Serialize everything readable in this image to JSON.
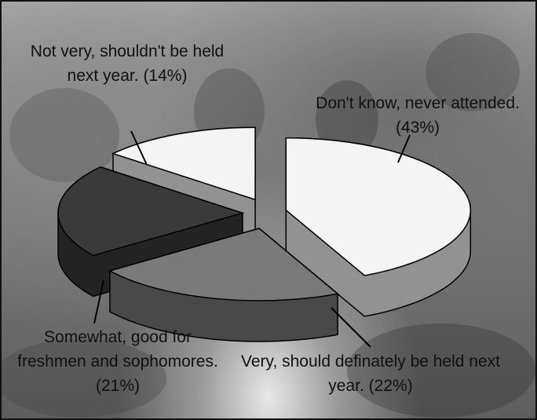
{
  "chart_data": {
    "type": "pie",
    "categories": [
      "Don't know, never attended.",
      "Very, should definately be held next year.",
      "Somewhat, good for freshmen and sophomores.",
      "Not very, shouldn't be held next year."
    ],
    "values": [
      43,
      22,
      21,
      14
    ],
    "value_labels": [
      "(43%)",
      "(22%)",
      "(21%)",
      "(14%)"
    ],
    "colors": [
      "#f4f4f4",
      "#7a7a7a",
      "#3a3a3a",
      "#f4f4f4"
    ]
  }
}
